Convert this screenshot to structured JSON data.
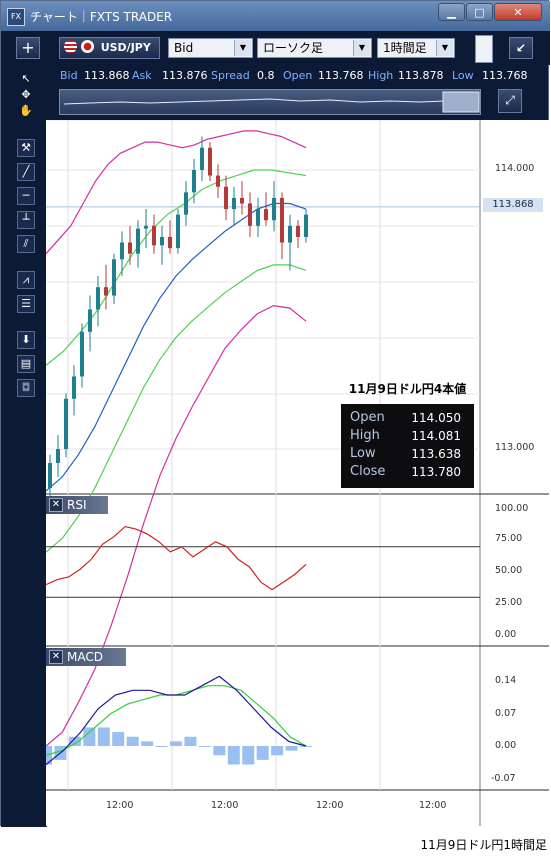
{
  "window": {
    "title": "チャート｜FXTS TRADER",
    "app_icon": "FX",
    "minimize": "▁",
    "maximize": "□",
    "close": "✕"
  },
  "toolbar": {
    "add_label": "+",
    "symbol": "USD/JPY",
    "price_side": "Bid",
    "chart_type": "ローソク足",
    "timeframe": "1時間足",
    "expand_label": "↙"
  },
  "quotes": {
    "bid_label": "Bid",
    "bid": "113.868",
    "ask_label": "Ask",
    "ask": "113.876",
    "spread_label": "Spread",
    "spread": "0.8",
    "open_label": "Open",
    "open": "113.768",
    "high_label": "High",
    "high": "113.878",
    "low_label": "Low",
    "low": "113.768"
  },
  "price_axis": {
    "labels": [
      "114.000",
      "113.000"
    ],
    "current_price": "113.868"
  },
  "annotation": {
    "title": "11月9日ドル円4本値",
    "open_label": "Open",
    "open": "114.050",
    "high_label": "High",
    "high": "114.081",
    "low_label": "Low",
    "low": "113.638",
    "close_label": "Close",
    "close": "113.780"
  },
  "rsi_panel": {
    "label": "RSI",
    "close_icon": "✕",
    "axis": [
      "100.00",
      "75.00",
      "50.00",
      "25.00",
      "0.00"
    ]
  },
  "macd_panel": {
    "label": "MACD",
    "close_icon": "✕",
    "axis": [
      "0.14",
      "0.07",
      "0.00",
      "-0.07"
    ]
  },
  "time_axis": {
    "labels": [
      "12:00",
      "12:00",
      "12:00",
      "12:00"
    ]
  },
  "caption": "11月9日ドル円1時間足",
  "icons": [
    "cursor-icon",
    "crosshair-icon",
    "hand-icon",
    "trendline-icon",
    "line-icon",
    "horizontal-line-icon",
    "vertical-line-icon",
    "channel-icon",
    "fibonacci-icon",
    "text-icon",
    "download-icon",
    "list-icon",
    "camera-icon"
  ],
  "colors": {
    "bullish": "#1f7f8f",
    "bearish": "#b43a3a",
    "bollinger_outer": "#d030a0",
    "bollinger_inner": "#50d050",
    "ma": "#2060c0",
    "rsi": "#cc2222",
    "macd": "#1a1a9a",
    "signal": "#30d030",
    "histogram": "#99c0f0"
  },
  "chart_data": {
    "type": "candlestick",
    "ohlc": [
      [
        112.86,
        112.98,
        112.8,
        112.95
      ],
      [
        112.95,
        113.05,
        112.9,
        113.0
      ],
      [
        113.0,
        113.2,
        112.97,
        113.18
      ],
      [
        113.18,
        113.3,
        113.12,
        113.26
      ],
      [
        113.26,
        113.45,
        113.22,
        113.42
      ],
      [
        113.42,
        113.55,
        113.35,
        113.5
      ],
      [
        113.5,
        113.62,
        113.44,
        113.58
      ],
      [
        113.58,
        113.66,
        113.5,
        113.55
      ],
      [
        113.55,
        113.7,
        113.52,
        113.68
      ],
      [
        113.68,
        113.78,
        113.62,
        113.74
      ],
      [
        113.74,
        113.8,
        113.66,
        113.7
      ],
      [
        113.7,
        113.82,
        113.65,
        113.79
      ],
      [
        113.79,
        113.86,
        113.72,
        113.8
      ],
      [
        113.8,
        113.84,
        113.7,
        113.73
      ],
      [
        113.73,
        113.8,
        113.66,
        113.76
      ],
      [
        113.76,
        113.82,
        113.7,
        113.72
      ],
      [
        113.72,
        113.86,
        113.7,
        113.84
      ],
      [
        113.84,
        113.96,
        113.8,
        113.92
      ],
      [
        113.92,
        114.04,
        113.88,
        114.0
      ],
      [
        114.0,
        114.12,
        113.96,
        114.08
      ],
      [
        114.08,
        114.1,
        113.96,
        113.98
      ],
      [
        113.98,
        114.02,
        113.9,
        113.94
      ],
      [
        113.94,
        113.98,
        113.82,
        113.86
      ],
      [
        113.86,
        113.94,
        113.8,
        113.9
      ],
      [
        113.9,
        113.96,
        113.84,
        113.88
      ],
      [
        113.88,
        113.92,
        113.76,
        113.8
      ],
      [
        113.8,
        113.9,
        113.76,
        113.86
      ],
      [
        113.86,
        113.92,
        113.8,
        113.82
      ],
      [
        113.82,
        113.96,
        113.78,
        113.9
      ],
      [
        113.9,
        113.92,
        113.68,
        113.74
      ],
      [
        113.74,
        113.84,
        113.64,
        113.8
      ],
      [
        113.8,
        113.82,
        113.72,
        113.76
      ],
      [
        113.76,
        113.86,
        113.74,
        113.84
      ]
    ],
    "bollinger_upper_outer": [
      113.7,
      113.75,
      113.8,
      113.88,
      113.96,
      114.02,
      114.06,
      114.08,
      114.1,
      114.1,
      114.09,
      114.08,
      114.09,
      114.11,
      114.12,
      114.13,
      114.14,
      114.14,
      114.13,
      114.12,
      114.1,
      114.08
    ],
    "bollinger_upper_inner": [
      113.3,
      113.35,
      113.42,
      113.5,
      113.6,
      113.7,
      113.78,
      113.84,
      113.88,
      113.93,
      113.96,
      113.98,
      114.0,
      114.0,
      113.99,
      113.98
    ],
    "ma": [
      112.85,
      112.9,
      112.98,
      113.08,
      113.2,
      113.32,
      113.44,
      113.54,
      113.62,
      113.68,
      113.73,
      113.78,
      113.82,
      113.86,
      113.88,
      113.88,
      113.86
    ],
    "rsi": [
      40,
      44,
      46,
      52,
      60,
      72,
      78,
      86,
      84,
      80,
      74,
      66,
      70,
      62,
      68,
      74,
      70,
      60,
      54,
      42,
      36,
      42,
      48,
      56
    ],
    "rsi_levels": [
      70,
      30
    ],
    "macd": [
      -0.04,
      -0.01,
      0.03,
      0.08,
      0.11,
      0.12,
      0.12,
      0.11,
      0.11,
      0.13,
      0.15,
      0.12,
      0.08,
      0.04,
      0.01,
      0.0
    ],
    "signal": [
      -0.02,
      -0.01,
      0.01,
      0.04,
      0.07,
      0.09,
      0.1,
      0.11,
      0.11,
      0.12,
      0.13,
      0.13,
      0.12,
      0.09,
      0.06,
      0.02,
      0.0
    ],
    "histogram": [
      -0.04,
      -0.03,
      0.02,
      0.04,
      0.04,
      0.03,
      0.02,
      0.01,
      0.0,
      0.01,
      0.02,
      0.0,
      -0.02,
      -0.04,
      -0.04,
      -0.03,
      -0.02,
      -0.01,
      0.0
    ]
  }
}
